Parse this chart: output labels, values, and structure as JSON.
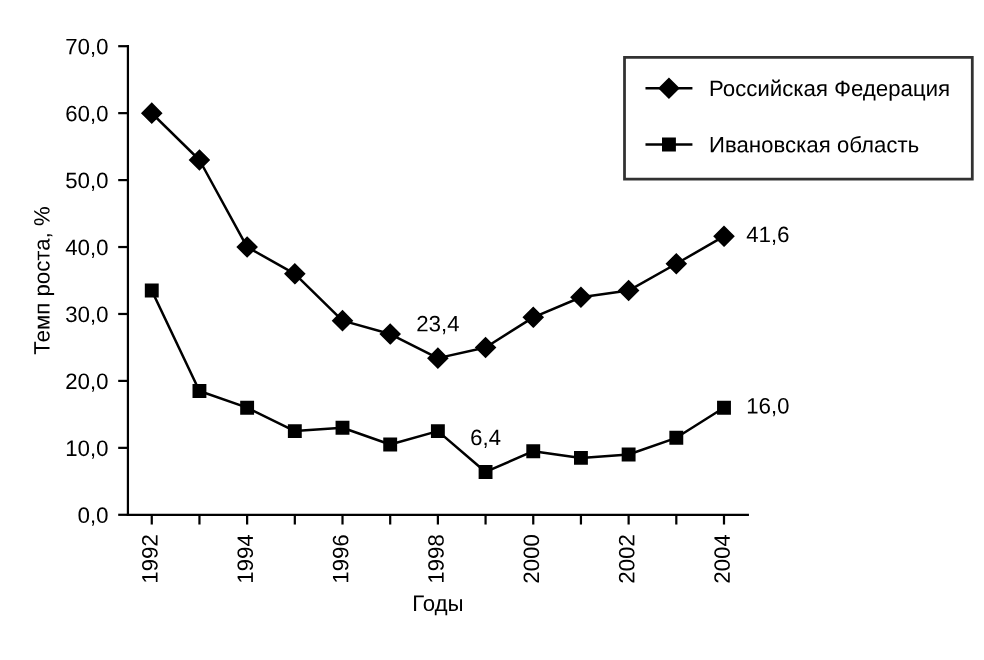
{
  "chart_data": {
    "type": "line",
    "xlabel": "Годы",
    "ylabel": "Темп роста, %",
    "categories": [
      "1992",
      null,
      "1994",
      null,
      "1996",
      null,
      "1998",
      null,
      "2000",
      null,
      "2002",
      null,
      "2004"
    ],
    "series": [
      {
        "name": "Российская Федерация",
        "color": "#000000",
        "marker": "diamond",
        "values": [
          60.0,
          53.0,
          40.0,
          36.0,
          29.0,
          27.0,
          23.4,
          25.0,
          29.5,
          32.5,
          33.5,
          37.5,
          41.6
        ],
        "value_labels": [
          null,
          null,
          null,
          null,
          null,
          null,
          "23,4",
          null,
          null,
          null,
          null,
          null,
          "41,6"
        ]
      },
      {
        "name": "Ивановская область",
        "color": "#000000",
        "marker": "square",
        "values": [
          33.5,
          18.5,
          16.0,
          12.5,
          13.0,
          10.5,
          12.5,
          6.4,
          9.5,
          8.5,
          9.0,
          11.5,
          16.0
        ],
        "value_labels": [
          null,
          null,
          null,
          null,
          null,
          null,
          null,
          "6,4",
          null,
          null,
          null,
          null,
          "16,0"
        ]
      }
    ],
    "ylim": [
      0,
      70
    ],
    "yticks": [
      {
        "value": 0,
        "label": "0,0"
      },
      {
        "value": 10,
        "label": "10,0"
      },
      {
        "value": 20,
        "label": "20,0"
      },
      {
        "value": 30,
        "label": "30,0"
      },
      {
        "value": 40,
        "label": "40,0"
      },
      {
        "value": 50,
        "label": "50,0"
      },
      {
        "value": 60,
        "label": "60,0"
      },
      {
        "value": 70,
        "label": "70,0"
      }
    ],
    "grid": false,
    "legend": "top right",
    "line_style": "solid"
  }
}
